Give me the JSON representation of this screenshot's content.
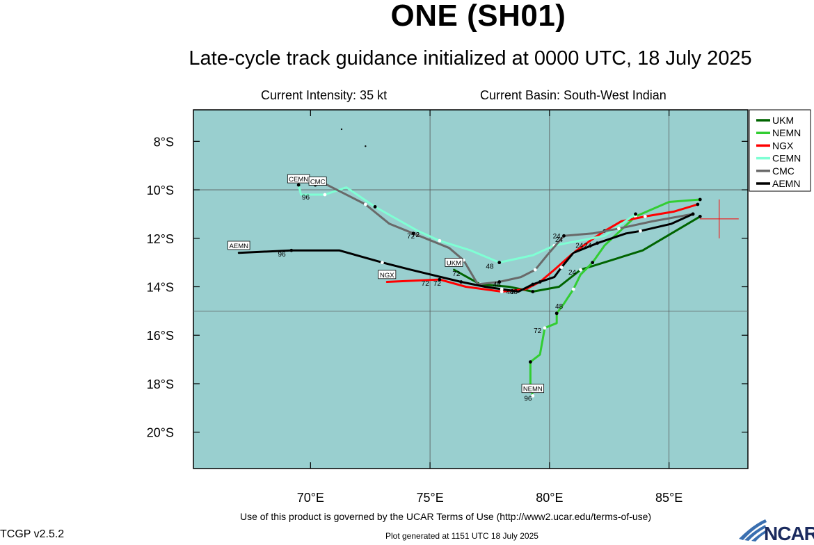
{
  "title": "ONE (SH01)",
  "subtitle": "Late-cycle track guidance initialized at 0000 UTC, 18 July 2025",
  "current_intensity": "Current Intensity: 35 kt",
  "current_basin": "Current Basin: South-West Indian",
  "footer_terms": "Use of this product is governed by the UCAR Terms of Use (http://www2.ucar.edu/terms-of-use)",
  "footer_generated": "Plot generated at 1151 UTC   18 July 2025",
  "version": "TCGP v2.5.2",
  "logo_text": "NCAR",
  "colors": {
    "ocean": "#99cfcf",
    "UKM": "#006400",
    "NEMN": "#32cd32",
    "NGX": "#ff0000",
    "CEMN": "#7fffd4",
    "CMC": "#696969",
    "AEMN": "#000000",
    "storm_marker": "#ff0000"
  },
  "map": {
    "lat_labels": [
      "8°S",
      "10°S",
      "12°S",
      "14°S",
      "16°S",
      "18°S",
      "20°S"
    ],
    "lat_values": [
      -8,
      -10,
      -12,
      -14,
      -16,
      -18,
      -20
    ],
    "lon_labels": [
      "70°E",
      "75°E",
      "80°E",
      "85°E"
    ],
    "lon_values": [
      70,
      75,
      80,
      85
    ],
    "lon_range": [
      65.1,
      88.3
    ],
    "lat_range": [
      -21.5,
      -6.7
    ],
    "gridlines_lon": [
      75,
      80,
      85
    ],
    "gridlines_lat": [
      -10,
      -15
    ],
    "storm_position": {
      "lon": 87.1,
      "lat": -11.2
    }
  },
  "legend": [
    {
      "name": "UKM"
    },
    {
      "name": "NEMN"
    },
    {
      "name": "NGX"
    },
    {
      "name": "CEMN"
    },
    {
      "name": "CMC"
    },
    {
      "name": "AEMN"
    }
  ],
  "tracks": [
    {
      "name": "UKM",
      "points": [
        [
          86.3,
          -11.1
        ],
        [
          83.9,
          -12.5
        ],
        [
          81.3,
          -13.3
        ],
        [
          80.4,
          -14.0
        ],
        [
          79.3,
          -14.2
        ],
        [
          78.3,
          -14.0
        ],
        [
          77.1,
          -13.9
        ],
        [
          76.0,
          -13.3
        ]
      ],
      "hour_labels": []
    },
    {
      "name": "NEMN",
      "points": [
        [
          86.3,
          -10.4
        ],
        [
          85.0,
          -10.5
        ],
        [
          83.6,
          -11.1
        ],
        [
          82.3,
          -12.3
        ],
        [
          81.8,
          -13.0
        ],
        [
          81.3,
          -13.5
        ],
        [
          81.0,
          -14.1
        ],
        [
          80.6,
          -14.7
        ],
        [
          80.3,
          -15.1
        ],
        [
          80.3,
          -15.5
        ],
        [
          79.8,
          -15.7
        ],
        [
          79.6,
          -16.8
        ],
        [
          79.2,
          -17.1
        ],
        [
          79.2,
          -18.1
        ],
        [
          79.3,
          -18.5
        ]
      ],
      "hour_labels": [
        {
          "text": "24",
          "lon": 80.95,
          "lat": -13.5
        },
        {
          "text": "48",
          "lon": 80.4,
          "lat": -14.9
        },
        {
          "text": "72",
          "lon": 79.5,
          "lat": -15.9
        },
        {
          "text": "96",
          "lon": 79.1,
          "lat": -18.7
        }
      ]
    },
    {
      "name": "NGX",
      "points": [
        [
          86.2,
          -10.6
        ],
        [
          85.2,
          -10.9
        ],
        [
          84.0,
          -11.1
        ],
        [
          83.0,
          -11.3
        ],
        [
          82.3,
          -11.7
        ],
        [
          81.7,
          -12.1
        ],
        [
          81.0,
          -12.6
        ],
        [
          80.2,
          -13.3
        ],
        [
          79.6,
          -13.8
        ],
        [
          79.0,
          -14.1
        ],
        [
          78.0,
          -14.2
        ],
        [
          76.5,
          -14.0
        ],
        [
          75.4,
          -13.7
        ],
        [
          73.2,
          -13.8
        ]
      ],
      "hour_labels": [
        {
          "text": "24",
          "lon": 81.25,
          "lat": -12.4
        },
        {
          "text": "48",
          "lon": 78.5,
          "lat": -14.3
        },
        {
          "text": "72",
          "lon": 75.3,
          "lat": -13.95
        }
      ]
    },
    {
      "name": "CEMN",
      "points": [
        [
          83.6,
          -11.0
        ],
        [
          82.3,
          -11.9
        ],
        [
          80.2,
          -12.3
        ],
        [
          79.3,
          -12.7
        ],
        [
          77.9,
          -13.0
        ],
        [
          76.7,
          -12.5
        ],
        [
          75.4,
          -12.1
        ],
        [
          74.5,
          -11.7
        ],
        [
          72.7,
          -10.7
        ],
        [
          71.5,
          -9.9
        ],
        [
          70.6,
          -10.2
        ],
        [
          69.6,
          -10.2
        ],
        [
          69.5,
          -9.8
        ]
      ],
      "hour_labels": [
        {
          "text": "24",
          "lon": 80.4,
          "lat": -12.15
        },
        {
          "text": "48",
          "lon": 77.5,
          "lat": -13.25
        },
        {
          "text": "72",
          "lon": 74.2,
          "lat": -12.0
        }
      ]
    },
    {
      "name": "CMC",
      "points": [
        [
          86.0,
          -11.0
        ],
        [
          84.3,
          -11.3
        ],
        [
          82.9,
          -11.6
        ],
        [
          81.8,
          -11.8
        ],
        [
          80.6,
          -11.9
        ],
        [
          79.9,
          -12.7
        ],
        [
          79.4,
          -13.3
        ],
        [
          78.8,
          -13.6
        ],
        [
          77.9,
          -13.8
        ],
        [
          77.0,
          -13.9
        ],
        [
          76.4,
          -12.9
        ],
        [
          75.8,
          -12.4
        ],
        [
          74.3,
          -11.8
        ],
        [
          73.3,
          -11.4
        ],
        [
          72.3,
          -10.6
        ],
        [
          70.5,
          -9.7
        ],
        [
          70.2,
          -9.8
        ]
      ],
      "hour_labels": [
        {
          "text": "24",
          "lon": 80.3,
          "lat": -12.0
        },
        {
          "text": "48",
          "lon": 77.8,
          "lat": -14.0
        },
        {
          "text": "72",
          "lon": 74.4,
          "lat": -11.95
        }
      ]
    },
    {
      "name": "AEMN",
      "points": [
        [
          86.0,
          -11.0
        ],
        [
          85.1,
          -11.4
        ],
        [
          83.8,
          -11.7
        ],
        [
          83.2,
          -11.8
        ],
        [
          82.0,
          -12.2
        ],
        [
          81.0,
          -12.6
        ],
        [
          80.5,
          -13.2
        ],
        [
          80.2,
          -13.6
        ],
        [
          79.3,
          -13.9
        ],
        [
          78.7,
          -14.2
        ],
        [
          78.0,
          -14.1
        ],
        [
          77.3,
          -14.0
        ],
        [
          76.3,
          -13.8
        ],
        [
          74.2,
          -13.3
        ],
        [
          73.0,
          -13.0
        ],
        [
          71.2,
          -12.5
        ],
        [
          69.2,
          -12.5
        ],
        [
          67.0,
          -12.6
        ]
      ],
      "hour_labels": [
        {
          "text": "24",
          "lon": 81.6,
          "lat": -12.4
        },
        {
          "text": "48",
          "lon": 78.35,
          "lat": -14.3
        },
        {
          "text": "72",
          "lon": 74.8,
          "lat": -13.95
        },
        {
          "text": "96",
          "lon": 68.8,
          "lat": -12.75
        }
      ]
    }
  ],
  "model_tags": [
    {
      "text": "CEMN",
      "lon": 69.5,
      "lat": -9.6
    },
    {
      "text": "CMC",
      "lon": 70.3,
      "lat": -9.7
    },
    {
      "text": "AEMN",
      "lon": 67.0,
      "lat": -12.35
    },
    {
      "text": "NGX",
      "lon": 73.2,
      "lat": -13.55
    },
    {
      "text": "UKM",
      "lon": 76.0,
      "lat": -13.05
    },
    {
      "text": "NEMN",
      "lon": 79.3,
      "lat": -18.25
    }
  ],
  "extra_labels": [
    {
      "text": "96",
      "lon": 69.8,
      "lat": -10.4
    },
    {
      "text": "72",
      "lon": 76.1,
      "lat": -13.55
    }
  ],
  "islands": [
    {
      "lon": 71.3,
      "lat": -7.5
    },
    {
      "lon": 72.3,
      "lat": -8.2
    }
  ]
}
